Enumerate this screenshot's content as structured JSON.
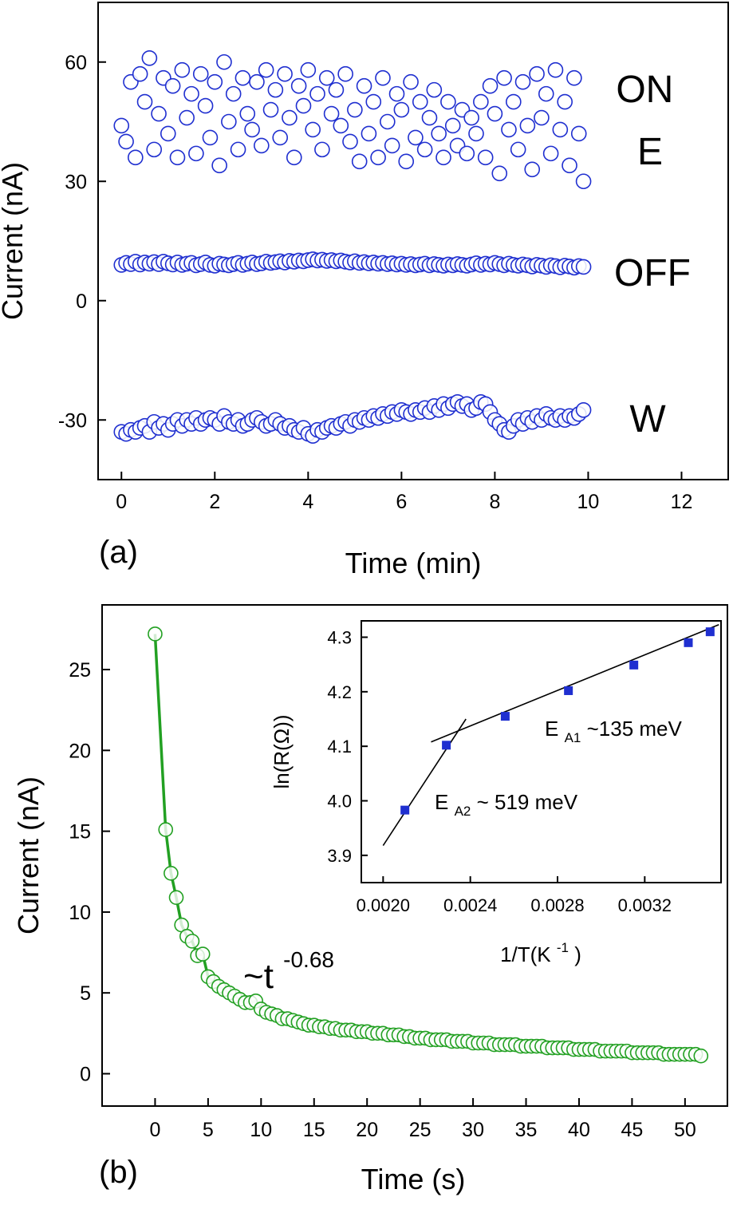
{
  "chart_data": [
    {
      "panel": "(a)",
      "type": "scatter",
      "xlabel": "Time (min)",
      "ylabel": "Current (nA)",
      "xlim": [
        -0.5,
        13
      ],
      "ylim": [
        -45,
        75
      ],
      "xticks": [
        0,
        2,
        4,
        6,
        8,
        10,
        12
      ],
      "yticks": [
        -30,
        0,
        30,
        60
      ],
      "grid": false,
      "marker": "open-circle",
      "color": "#1f2fd0",
      "series": [
        {
          "label": "ON\nE",
          "x": [
            0.0,
            0.1,
            0.2,
            0.3,
            0.4,
            0.5,
            0.6,
            0.7,
            0.8,
            0.9,
            1.0,
            1.1,
            1.2,
            1.3,
            1.4,
            1.5,
            1.6,
            1.7,
            1.8,
            1.9,
            2.0,
            2.1,
            2.2,
            2.3,
            2.4,
            2.5,
            2.6,
            2.7,
            2.8,
            2.9,
            3.0,
            3.1,
            3.2,
            3.3,
            3.4,
            3.5,
            3.6,
            3.7,
            3.8,
            3.9,
            4.0,
            4.1,
            4.2,
            4.3,
            4.4,
            4.5,
            4.6,
            4.7,
            4.8,
            4.9,
            5.0,
            5.1,
            5.2,
            5.3,
            5.4,
            5.5,
            5.6,
            5.7,
            5.8,
            5.9,
            6.0,
            6.1,
            6.2,
            6.3,
            6.4,
            6.5,
            6.6,
            6.7,
            6.8,
            6.9,
            7.0,
            7.1,
            7.2,
            7.3,
            7.4,
            7.5,
            7.6,
            7.7,
            7.8,
            7.9,
            8.0,
            8.1,
            8.2,
            8.3,
            8.4,
            8.5,
            8.6,
            8.7,
            8.8,
            8.9,
            9.0,
            9.1,
            9.2,
            9.3,
            9.4,
            9.5,
            9.6,
            9.7,
            9.8,
            9.9
          ],
          "y": [
            44,
            40,
            55,
            36,
            57,
            50,
            61,
            38,
            47,
            56,
            42,
            54,
            36,
            58,
            46,
            52,
            37,
            57,
            49,
            41,
            55,
            34,
            60,
            45,
            52,
            38,
            56,
            47,
            43,
            55,
            39,
            58,
            48,
            53,
            41,
            57,
            46,
            36,
            54,
            49,
            58,
            43,
            52,
            38,
            56,
            47,
            53,
            44,
            57,
            40,
            48,
            35,
            54,
            42,
            50,
            36,
            56,
            45,
            39,
            52,
            48,
            35,
            55,
            41,
            50,
            38,
            46,
            53,
            42,
            36,
            50,
            44,
            39,
            48,
            37,
            46,
            42,
            50,
            36,
            54,
            47,
            32,
            56,
            43,
            50,
            38,
            55,
            44,
            33,
            57,
            46,
            52,
            37,
            58,
            43,
            50,
            34,
            56,
            42,
            30
          ]
        },
        {
          "label": "OFF",
          "x": [
            0.0,
            0.1,
            0.2,
            0.3,
            0.4,
            0.5,
            0.6,
            0.7,
            0.8,
            0.9,
            1.0,
            1.1,
            1.2,
            1.3,
            1.4,
            1.5,
            1.6,
            1.7,
            1.8,
            1.9,
            2.0,
            2.1,
            2.2,
            2.3,
            2.4,
            2.5,
            2.6,
            2.7,
            2.8,
            2.9,
            3.0,
            3.1,
            3.2,
            3.3,
            3.4,
            3.5,
            3.6,
            3.7,
            3.8,
            3.9,
            4.0,
            4.1,
            4.2,
            4.3,
            4.4,
            4.5,
            4.6,
            4.7,
            4.8,
            4.9,
            5.0,
            5.1,
            5.2,
            5.3,
            5.4,
            5.5,
            5.6,
            5.7,
            5.8,
            5.9,
            6.0,
            6.1,
            6.2,
            6.3,
            6.4,
            6.5,
            6.6,
            6.7,
            6.8,
            6.9,
            7.0,
            7.1,
            7.2,
            7.3,
            7.4,
            7.5,
            7.6,
            7.7,
            7.8,
            7.9,
            8.0,
            8.1,
            8.2,
            8.3,
            8.4,
            8.5,
            8.6,
            8.7,
            8.8,
            8.9,
            9.0,
            9.1,
            9.2,
            9.3,
            9.4,
            9.5,
            9.6,
            9.7,
            9.8,
            9.9
          ],
          "y": [
            9.0,
            9.5,
            9.2,
            9.8,
            9.1,
            9.6,
            9.3,
            9.7,
            9.2,
            9.8,
            9.4,
            9.1,
            9.6,
            9.0,
            9.3,
            9.5,
            8.9,
            9.2,
            9.6,
            9.0,
            8.8,
            9.3,
            9.1,
            8.9,
            9.2,
            9.5,
            9.0,
            9.3,
            9.6,
            9.2,
            9.4,
            9.8,
            9.5,
            9.7,
            9.9,
            9.6,
            10.0,
            9.8,
            10.1,
            9.9,
            10.2,
            10.4,
            10.1,
            10.3,
            10.0,
            10.2,
            9.9,
            10.1,
            9.8,
            9.6,
            9.9,
            9.5,
            9.7,
            9.4,
            9.6,
            9.3,
            9.5,
            9.2,
            9.4,
            9.1,
            9.3,
            9.0,
            9.2,
            8.9,
            9.1,
            9.3,
            8.9,
            9.2,
            9.0,
            8.8,
            9.1,
            8.9,
            9.2,
            9.0,
            8.8,
            9.1,
            9.4,
            9.0,
            9.3,
            9.1,
            9.5,
            9.2,
            8.9,
            9.3,
            9.0,
            8.8,
            9.1,
            8.9,
            8.6,
            9.0,
            8.8,
            8.5,
            8.9,
            8.7,
            8.4,
            8.8,
            8.6,
            8.3,
            8.7,
            8.5
          ]
        },
        {
          "label": "W",
          "x": [
            0.0,
            0.1,
            0.2,
            0.3,
            0.4,
            0.5,
            0.6,
            0.7,
            0.8,
            0.9,
            1.0,
            1.1,
            1.2,
            1.3,
            1.4,
            1.5,
            1.6,
            1.7,
            1.8,
            1.9,
            2.0,
            2.1,
            2.2,
            2.3,
            2.4,
            2.5,
            2.6,
            2.7,
            2.8,
            2.9,
            3.0,
            3.1,
            3.2,
            3.3,
            3.4,
            3.5,
            3.6,
            3.7,
            3.8,
            3.9,
            4.0,
            4.1,
            4.2,
            4.3,
            4.4,
            4.5,
            4.6,
            4.7,
            4.8,
            4.9,
            5.0,
            5.1,
            5.2,
            5.3,
            5.4,
            5.5,
            5.6,
            5.7,
            5.8,
            5.9,
            6.0,
            6.1,
            6.2,
            6.3,
            6.4,
            6.5,
            6.6,
            6.7,
            6.8,
            6.9,
            7.0,
            7.1,
            7.2,
            7.3,
            7.4,
            7.5,
            7.6,
            7.7,
            7.8,
            7.9,
            8.0,
            8.1,
            8.2,
            8.3,
            8.4,
            8.5,
            8.6,
            8.7,
            8.8,
            8.9,
            9.0,
            9.1,
            9.2,
            9.3,
            9.4,
            9.5,
            9.6,
            9.7,
            9.8,
            9.9
          ],
          "y": [
            -33,
            -33.5,
            -32.5,
            -33,
            -32,
            -31.5,
            -33,
            -30.5,
            -32,
            -31,
            -32.5,
            -31,
            -30,
            -31.5,
            -30,
            -31,
            -29.5,
            -31,
            -30,
            -29.5,
            -30,
            -31,
            -29,
            -30.5,
            -31,
            -30,
            -31.5,
            -31,
            -30,
            -29.5,
            -30.5,
            -31.5,
            -31,
            -30,
            -31,
            -32,
            -31.5,
            -32.5,
            -33,
            -32,
            -33.5,
            -34,
            -32.5,
            -33,
            -32,
            -31.5,
            -32,
            -31,
            -30.5,
            -31.5,
            -30,
            -30.5,
            -29.5,
            -30,
            -29,
            -29.5,
            -28.5,
            -29,
            -28,
            -28.5,
            -27.5,
            -28,
            -28.5,
            -27.5,
            -28,
            -27,
            -28,
            -26.5,
            -27.5,
            -26,
            -27,
            -26,
            -25.5,
            -26.5,
            -26,
            -27.5,
            -27,
            -25.5,
            -26,
            -28,
            -30,
            -31,
            -32.5,
            -33,
            -31.5,
            -30,
            -31,
            -29.5,
            -30.5,
            -29,
            -30,
            -28.5,
            -29.5,
            -30,
            -29,
            -30,
            -29,
            -29.5,
            -28.5,
            -27.5
          ]
        }
      ]
    },
    {
      "panel": "(b)",
      "type": "line",
      "xlabel": "Time (s)",
      "ylabel": "Current (nA)",
      "xlim": [
        -5,
        54
      ],
      "ylim": [
        -2,
        29
      ],
      "xticks": [
        0,
        5,
        10,
        15,
        20,
        25,
        30,
        35,
        40,
        45,
        50
      ],
      "yticks": [
        0,
        5,
        10,
        15,
        20,
        25
      ],
      "grid": false,
      "marker": "open-circle",
      "color": "#22a022",
      "annotation": "~t-0.68",
      "annotation_base": "~t",
      "annotation_exp": "-0.68",
      "series": [
        {
          "x": [
            0,
            1,
            1.5,
            2,
            2.5,
            3,
            3.5,
            4,
            4.5,
            5,
            5.5,
            6,
            6.5,
            7,
            7.5,
            8,
            8.5,
            9,
            9.5,
            10,
            10.5,
            11,
            11.5,
            12,
            12.5,
            13,
            13.5,
            14,
            14.5,
            15,
            15.5,
            16,
            16.5,
            17,
            17.5,
            18,
            18.5,
            19,
            19.5,
            20,
            20.5,
            21,
            21.5,
            22,
            22.5,
            23,
            23.5,
            24,
            24.5,
            25,
            25.5,
            26,
            26.5,
            27,
            27.5,
            28,
            28.5,
            29,
            29.5,
            30,
            30.5,
            31,
            31.5,
            32,
            32.5,
            33,
            33.5,
            34,
            34.5,
            35,
            35.5,
            36,
            36.5,
            37,
            37.5,
            38,
            38.5,
            39,
            39.5,
            40,
            40.5,
            41,
            41.5,
            42,
            42.5,
            43,
            43.5,
            44,
            44.5,
            45,
            45.5,
            46,
            46.5,
            47,
            47.5,
            48,
            48.5,
            49,
            49.5,
            50,
            50.5,
            51,
            51.5
          ],
          "y": [
            27.2,
            15.1,
            12.4,
            10.9,
            9.2,
            8.5,
            8.2,
            7.3,
            7.4,
            6.0,
            5.7,
            5.4,
            5.2,
            5.0,
            4.8,
            4.6,
            4.4,
            4.4,
            4.5,
            4.0,
            3.8,
            3.7,
            3.6,
            3.4,
            3.4,
            3.3,
            3.2,
            3.1,
            3.0,
            3.0,
            2.9,
            2.9,
            2.8,
            2.8,
            2.7,
            2.7,
            2.7,
            2.6,
            2.6,
            2.6,
            2.5,
            2.5,
            2.5,
            2.4,
            2.4,
            2.4,
            2.3,
            2.3,
            2.2,
            2.2,
            2.2,
            2.1,
            2.1,
            2.1,
            2.1,
            2.0,
            2.0,
            2.0,
            2.0,
            1.9,
            1.9,
            1.9,
            1.9,
            1.8,
            1.8,
            1.8,
            1.8,
            1.8,
            1.7,
            1.7,
            1.7,
            1.7,
            1.7,
            1.6,
            1.6,
            1.6,
            1.6,
            1.6,
            1.5,
            1.5,
            1.5,
            1.5,
            1.5,
            1.4,
            1.4,
            1.4,
            1.4,
            1.4,
            1.4,
            1.3,
            1.3,
            1.3,
            1.3,
            1.3,
            1.3,
            1.2,
            1.2,
            1.2,
            1.2,
            1.2,
            1.2,
            1.2,
            1.1
          ]
        }
      ],
      "inset": {
        "type": "scatter",
        "xlabel": "1/T(K-1)",
        "xlabel_base": "1/T(K",
        "xlabel_exp": "-1",
        "xlabel_close": ")",
        "ylabel": "ln(R(Ω))",
        "xlim": [
          0.0019,
          0.00355
        ],
        "ylim": [
          3.85,
          4.33
        ],
        "xticks": [
          0.002,
          0.0024,
          0.0028,
          0.0032
        ],
        "xtick_labels": [
          "0.0020",
          "0.0024",
          "0.0028",
          "0.0032"
        ],
        "yticks": [
          3.9,
          4.0,
          4.1,
          4.2,
          4.3
        ],
        "ytick_labels": [
          "3.9",
          "4.0",
          "4.1",
          "4.2",
          "4.3"
        ],
        "marker": "filled-square",
        "color": "#1f2fd0",
        "points": {
          "x": [
            0.0021,
            0.00229,
            0.00256,
            0.00285,
            0.00315,
            0.0034,
            0.0035
          ],
          "y": [
            3.983,
            4.102,
            4.155,
            4.202,
            4.249,
            4.29,
            4.31
          ]
        },
        "fit_lines": [
          {
            "x": [
              0.002,
              0.00238
            ],
            "y": [
              3.918,
              4.15
            ]
          },
          {
            "x": [
              0.00222,
              0.00354
            ],
            "y": [
              4.108,
              4.323
            ]
          }
        ],
        "labels": [
          {
            "base": "E",
            "sub": "A1",
            "rest": "~135 meV"
          },
          {
            "base": "E",
            "sub": "A2",
            "rest": "~ 519 meV"
          }
        ]
      }
    }
  ]
}
